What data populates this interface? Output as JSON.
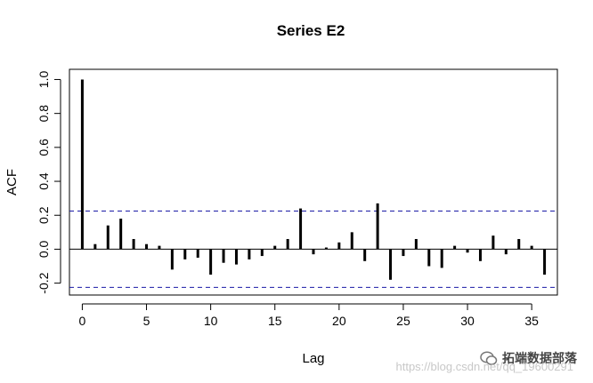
{
  "chart_data": {
    "type": "bar",
    "title": "Series  E2",
    "xlabel": "Lag",
    "ylabel": "ACF",
    "xlim": [
      -1,
      37
    ],
    "ylim": [
      -0.27,
      1.06
    ],
    "xticks": [
      0,
      5,
      10,
      15,
      20,
      25,
      30,
      35
    ],
    "yticks": [
      -0.2,
      0.0,
      0.2,
      0.4,
      0.6,
      0.8,
      1.0
    ],
    "ytick_labels": [
      "-0.2",
      "0.0",
      "0.2",
      "0.4",
      "0.6",
      "0.8",
      "1.0"
    ],
    "lags": [
      0,
      1,
      2,
      3,
      4,
      5,
      6,
      7,
      8,
      9,
      10,
      11,
      12,
      13,
      14,
      15,
      16,
      17,
      18,
      19,
      20,
      21,
      22,
      23,
      24,
      25,
      26,
      27,
      28,
      29,
      30,
      31,
      32,
      33,
      34,
      35,
      36
    ],
    "values": [
      1.0,
      0.03,
      0.14,
      0.18,
      0.06,
      0.03,
      0.02,
      -0.12,
      -0.06,
      -0.05,
      -0.15,
      -0.08,
      -0.09,
      -0.06,
      -0.04,
      0.02,
      0.06,
      0.24,
      -0.03,
      0.01,
      0.04,
      0.1,
      -0.07,
      0.27,
      -0.18,
      -0.04,
      0.06,
      -0.1,
      -0.11,
      0.02,
      -0.02,
      -0.07,
      0.08,
      -0.03,
      0.06,
      0.02,
      -0.15
    ],
    "confidence_bound": 0.225,
    "zero_line": true,
    "grid": false,
    "colors": {
      "bars": "#000000",
      "bounds": "#1a1aa6"
    }
  },
  "watermark": {
    "brand": "拓端数据部落",
    "url": "https://blog.csdn.net/qq_19600291"
  }
}
